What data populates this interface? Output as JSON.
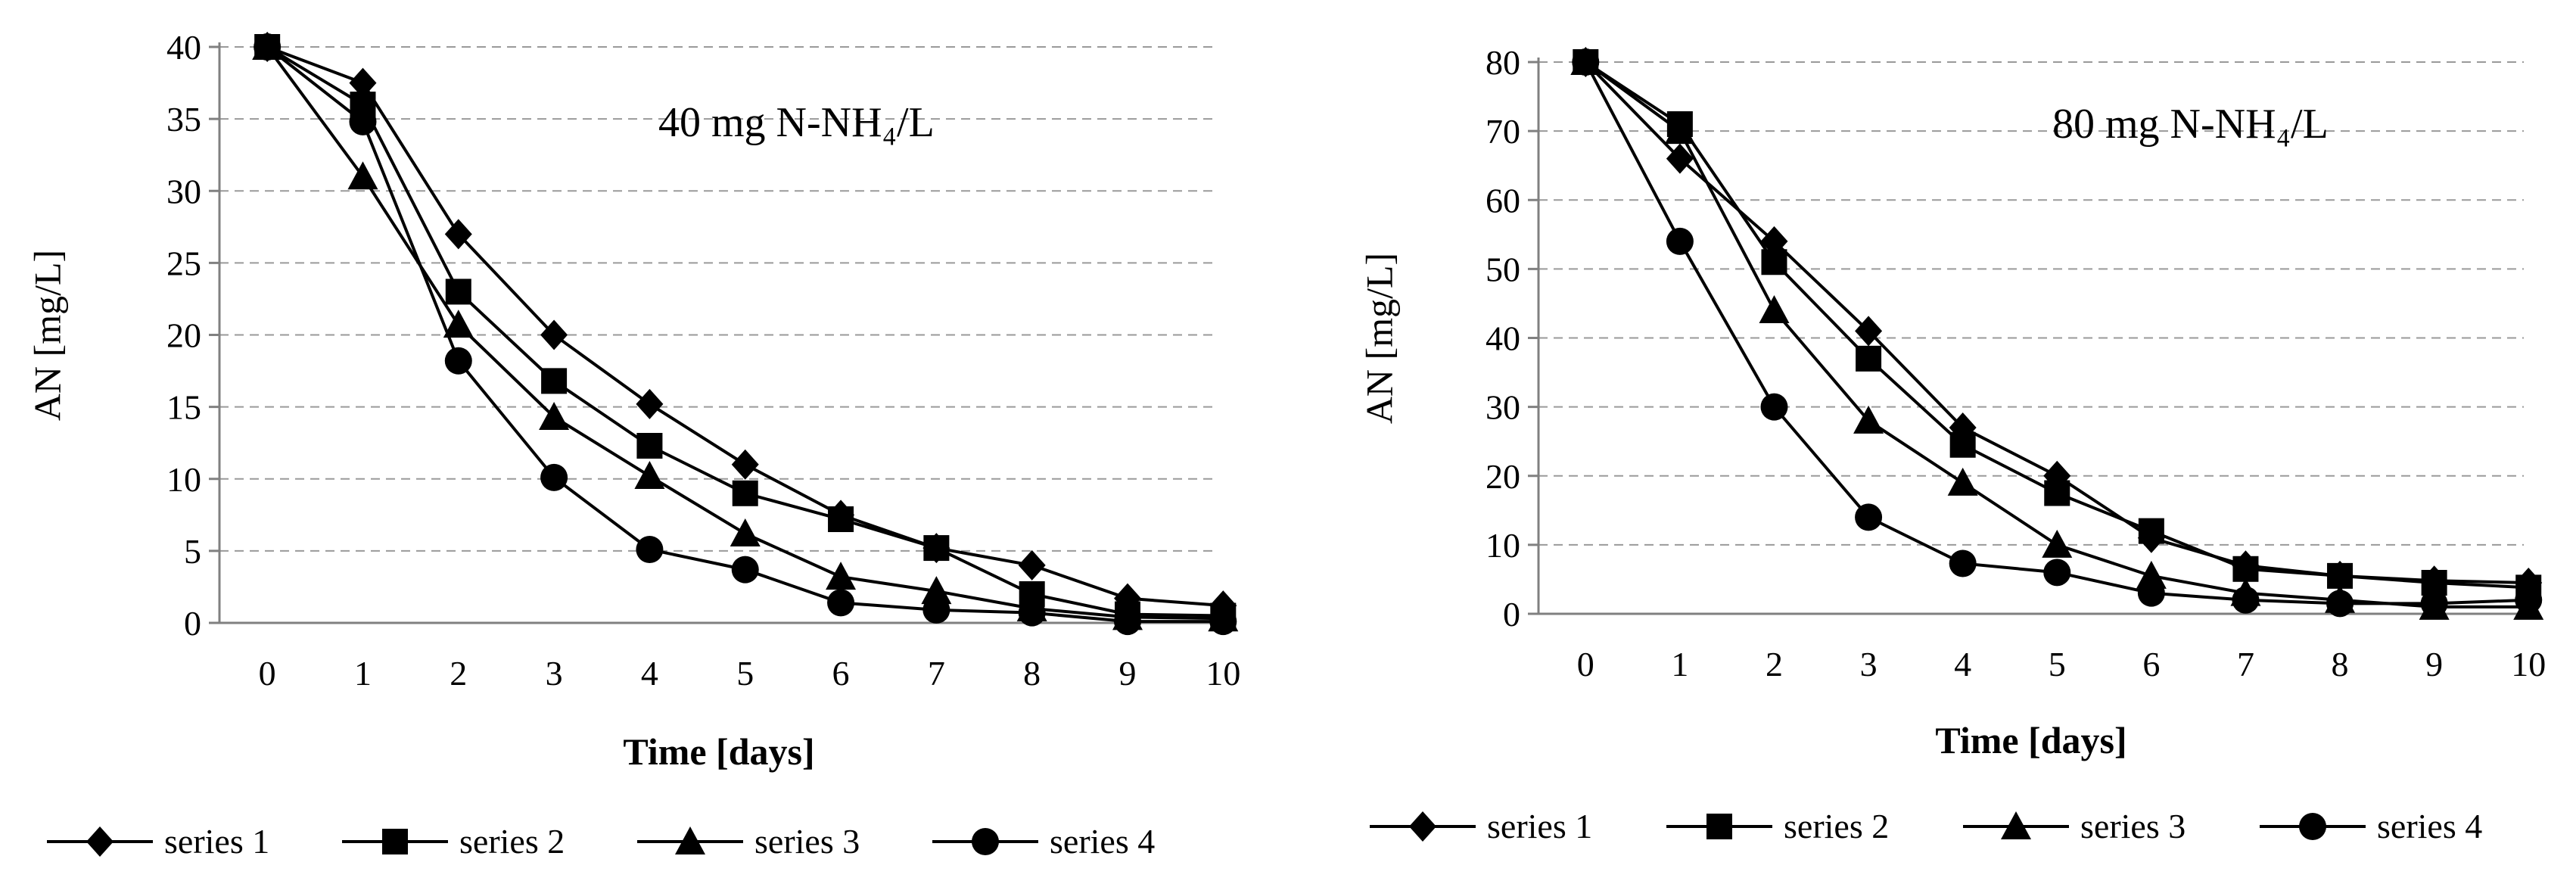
{
  "chart_data": [
    {
      "type": "line",
      "annotation": "40 mg N-NH₄/L",
      "xlabel": "Time [days]",
      "ylabel": "AN [mg/L]",
      "x": [
        0,
        1,
        2,
        3,
        4,
        5,
        6,
        7,
        8,
        9,
        10
      ],
      "ylim": [
        0,
        40
      ],
      "yticks": [
        0,
        5,
        10,
        15,
        20,
        25,
        30,
        35,
        40
      ],
      "grid": "horizontal-dashed",
      "legend_position": "bottom",
      "series": [
        {
          "name": "series 1",
          "marker": "diamond",
          "values": [
            40,
            37.5,
            27,
            20,
            15.2,
            11,
            7.5,
            5.2,
            4,
            1.7,
            1.2
          ]
        },
        {
          "name": "series 2",
          "marker": "square",
          "values": [
            40,
            36,
            23,
            16.8,
            12.3,
            9,
            7.2,
            5.2,
            2,
            0.6,
            0.5
          ]
        },
        {
          "name": "series 3",
          "marker": "triangle",
          "values": [
            40,
            31,
            20.7,
            14.3,
            10.2,
            6.2,
            3.2,
            2.2,
            1,
            0.4,
            0.3
          ]
        },
        {
          "name": "series 4",
          "marker": "circle",
          "values": [
            40,
            34.8,
            18.2,
            10.1,
            5.1,
            3.7,
            1.4,
            0.9,
            0.7,
            0.1,
            0.1
          ]
        }
      ]
    },
    {
      "type": "line",
      "annotation": "80 mg N-NH₄/L",
      "xlabel": "Time [days]",
      "ylabel": "AN [mg/L]",
      "x": [
        0,
        1,
        2,
        3,
        4,
        5,
        6,
        7,
        8,
        9,
        10
      ],
      "ylim": [
        0,
        80
      ],
      "yticks": [
        0,
        10,
        20,
        30,
        40,
        50,
        60,
        70,
        80
      ],
      "grid": "horizontal-dashed",
      "legend_position": "bottom",
      "series": [
        {
          "name": "series 1",
          "marker": "diamond",
          "values": [
            80,
            66,
            54,
            41,
            27,
            20,
            11,
            7,
            5.5,
            4.8,
            4.5
          ]
        },
        {
          "name": "series 2",
          "marker": "square",
          "values": [
            80,
            71,
            51,
            37,
            24.5,
            17.5,
            12,
            6.5,
            5.5,
            4.5,
            3.8
          ]
        },
        {
          "name": "series 3",
          "marker": "triangle",
          "values": [
            80,
            70,
            44,
            28,
            19,
            10,
            5.5,
            3,
            2,
            1,
            1
          ]
        },
        {
          "name": "series 4",
          "marker": "circle",
          "values": [
            80,
            54,
            30,
            14,
            7.3,
            6,
            3,
            2,
            1.5,
            1.5,
            2
          ]
        }
      ]
    }
  ]
}
